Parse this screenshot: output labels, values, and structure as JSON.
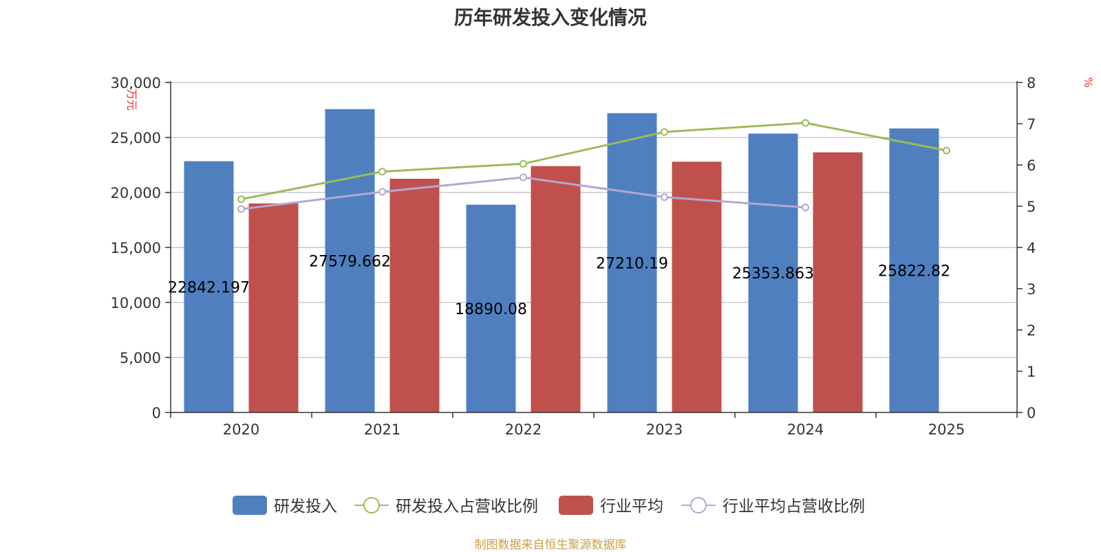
{
  "title": "历年研发投入变化情况",
  "source": "制图数据来自恒生聚源数据库",
  "colors": {
    "rd": "#4f7fbf",
    "industry": "#c0504d",
    "rd_ratio": "#9bbb59",
    "industry_ratio": "#b3a7d3",
    "grid": "#c8c8c8",
    "axis": "#333333"
  },
  "chart_data": {
    "type": "bar",
    "categories": [
      "2020",
      "2021",
      "2022",
      "2023",
      "2024",
      "2025"
    ],
    "y_left": {
      "label": "万元",
      "range": [
        0,
        30000
      ],
      "ticks": [
        0,
        5000,
        10000,
        15000,
        20000,
        25000,
        30000
      ],
      "tick_labels": [
        "0",
        "5,000",
        "10,000",
        "15,000",
        "20,000",
        "25,000",
        "30,000"
      ]
    },
    "y_right": {
      "label": "%",
      "range": [
        0,
        8
      ],
      "ticks": [
        0,
        1,
        2,
        3,
        4,
        5,
        6,
        7,
        8
      ],
      "tick_labels": [
        "0",
        "1",
        "2",
        "3",
        "4",
        "5",
        "6",
        "7",
        "8"
      ]
    },
    "grid": true,
    "legend_position": "bottom",
    "series": [
      {
        "name": "研发投入",
        "type": "bar",
        "axis": "left",
        "values": [
          22842.197,
          27579.662,
          18890.08,
          27210.19,
          25353.863,
          25822.82
        ],
        "labels": [
          "22842.197",
          "27579.662",
          "18890.08",
          "27210.19",
          "25353.863",
          "25822.82"
        ]
      },
      {
        "name": "研发投入占营收比例",
        "type": "line",
        "axis": "right",
        "values": [
          5.17,
          5.84,
          6.03,
          6.8,
          7.02,
          6.35
        ]
      },
      {
        "name": "行业平均",
        "type": "bar",
        "axis": "left",
        "values": [
          19000,
          21250,
          22400,
          22800,
          23650,
          null
        ]
      },
      {
        "name": "行业平均占营收比例",
        "type": "line",
        "axis": "right",
        "values": [
          4.93,
          5.35,
          5.7,
          5.22,
          4.97,
          null
        ]
      }
    ]
  }
}
